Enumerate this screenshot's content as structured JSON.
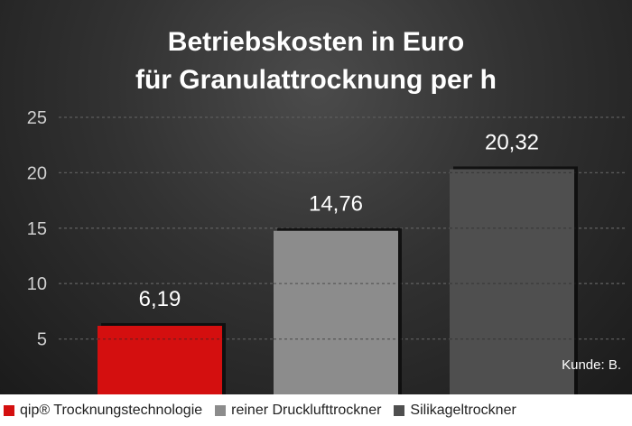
{
  "title_lines": [
    "Betriebskosten in Euro",
    "für Granulattrocknung per h"
  ],
  "footnote": "Kunde: B.",
  "colors": {
    "qip": "#d40f0f",
    "druckluft": "#8c8c8c",
    "silikagel": "#4f4f4f"
  },
  "legend": [
    {
      "label": "qip® Trocknungstechnologie",
      "color": "#d40f0f"
    },
    {
      "label": "reiner Drucklufttrockner",
      "color": "#8c8c8c"
    },
    {
      "label": "Silikageltrockner",
      "color": "#4f4f4f"
    }
  ],
  "chart_data": {
    "type": "bar",
    "title": "Betriebskosten in Euro für Granulattrocknung per h",
    "categories": [
      "qip® Trocknungstechnologie",
      "reiner Drucklufttrockner",
      "Silikageltrockner"
    ],
    "values": [
      6.19,
      14.76,
      20.32
    ],
    "value_labels": [
      "6,19",
      "14,76",
      "20,32"
    ],
    "yticks": [
      5,
      10,
      15,
      20,
      25
    ],
    "ytick_labels": [
      "5",
      "10",
      "15",
      "20",
      "25"
    ],
    "ylim": [
      0,
      25
    ],
    "xlabel": "",
    "ylabel": "",
    "grid": true,
    "legend_position": "bottom"
  }
}
